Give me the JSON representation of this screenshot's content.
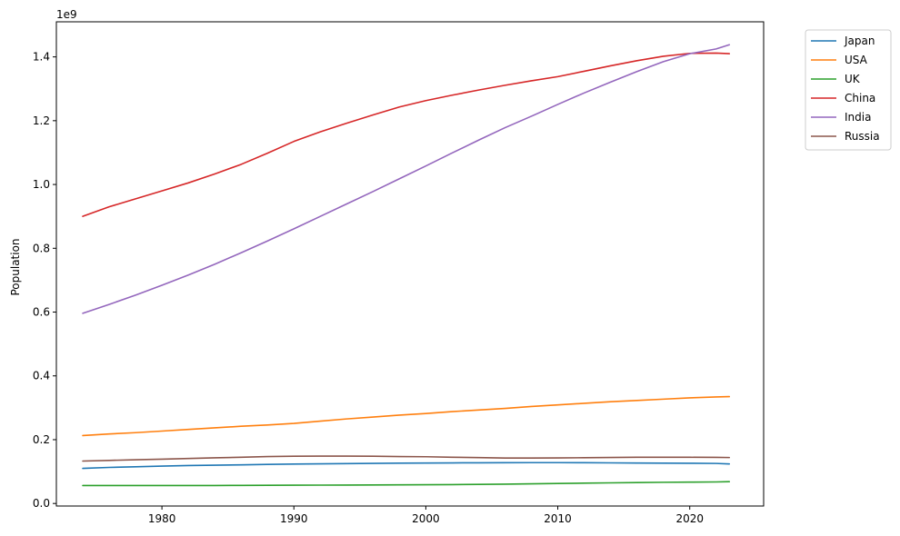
{
  "chart_data": {
    "type": "line",
    "title": "",
    "xlabel": "",
    "ylabel": "Population",
    "y_offset_text": "1e9",
    "xlim": [
      1972,
      2025.6
    ],
    "ylim": [
      -0.008,
      1.51
    ],
    "y_scale_note": "values in units of 1e9",
    "x_ticks": [
      1980,
      1990,
      2000,
      2010,
      2020
    ],
    "y_ticks": [
      0.0,
      0.2,
      0.4,
      0.6,
      0.8,
      1.0,
      1.2,
      1.4
    ],
    "x_tick_labels": [
      "1980",
      "1990",
      "2000",
      "2010",
      "2020"
    ],
    "y_tick_labels": [
      "0.0",
      "0.2",
      "0.4",
      "0.6",
      "0.8",
      "1.0",
      "1.2",
      "1.4"
    ],
    "grid": false,
    "legend_position": "outside-top-right",
    "x": [
      1974,
      1976,
      1978,
      1980,
      1982,
      1984,
      1986,
      1988,
      1990,
      1992,
      1994,
      1996,
      1998,
      2000,
      2002,
      2004,
      2006,
      2008,
      2010,
      2012,
      2014,
      2016,
      2018,
      2020,
      2022,
      2023
    ],
    "series": [
      {
        "name": "Japan",
        "color": "#1f77b4",
        "values": [
          0.11,
          0.113,
          0.115,
          0.117,
          0.119,
          0.12,
          0.121,
          0.1225,
          0.1235,
          0.1243,
          0.125,
          0.1257,
          0.1263,
          0.1268,
          0.1272,
          0.1276,
          0.1278,
          0.128,
          0.128,
          0.1278,
          0.1273,
          0.1268,
          0.1265,
          0.126,
          0.1255,
          0.124
        ]
      },
      {
        "name": "USA",
        "color": "#ff7f0e",
        "values": [
          0.213,
          0.218,
          0.222,
          0.227,
          0.232,
          0.237,
          0.242,
          0.246,
          0.251,
          0.258,
          0.265,
          0.271,
          0.277,
          0.282,
          0.288,
          0.293,
          0.298,
          0.304,
          0.309,
          0.314,
          0.319,
          0.323,
          0.327,
          0.331,
          0.334,
          0.335
        ]
      },
      {
        "name": "UK",
        "color": "#2ca02c",
        "values": [
          0.0562,
          0.0562,
          0.0562,
          0.0563,
          0.0563,
          0.0564,
          0.0566,
          0.0569,
          0.0572,
          0.0575,
          0.0578,
          0.0581,
          0.0584,
          0.0587,
          0.0592,
          0.0597,
          0.0605,
          0.0615,
          0.0627,
          0.0637,
          0.0646,
          0.0656,
          0.0664,
          0.067,
          0.0675,
          0.0683
        ]
      },
      {
        "name": "China",
        "color": "#d62728",
        "values": [
          0.9,
          0.93,
          0.955,
          0.98,
          1.005,
          1.033,
          1.063,
          1.098,
          1.135,
          1.165,
          1.192,
          1.218,
          1.243,
          1.263,
          1.28,
          1.296,
          1.311,
          1.325,
          1.338,
          1.355,
          1.372,
          1.388,
          1.402,
          1.411,
          1.412,
          1.41
        ]
      },
      {
        "name": "India",
        "color": "#9467bd",
        "values": [
          0.596,
          0.624,
          0.653,
          0.684,
          0.716,
          0.75,
          0.786,
          0.823,
          0.861,
          0.9,
          0.939,
          0.978,
          1.018,
          1.058,
          1.099,
          1.139,
          1.178,
          1.214,
          1.251,
          1.287,
          1.321,
          1.354,
          1.385,
          1.41,
          1.425,
          1.438
        ]
      },
      {
        "name": "Russia",
        "color": "#8c564b",
        "values": [
          0.133,
          0.135,
          0.137,
          0.139,
          0.141,
          0.143,
          0.145,
          0.147,
          0.148,
          0.1485,
          0.1485,
          0.148,
          0.147,
          0.1465,
          0.145,
          0.1438,
          0.1425,
          0.1425,
          0.1428,
          0.1435,
          0.1443,
          0.1448,
          0.145,
          0.1448,
          0.1445,
          0.144
        ]
      }
    ]
  }
}
